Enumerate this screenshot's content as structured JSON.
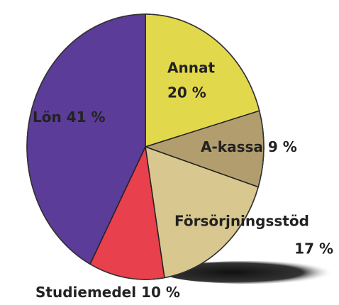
{
  "chart_data": {
    "type": "pie",
    "categories": [
      "Annat",
      "A-kassa",
      "Försörjningsstöd",
      "Studiemedel",
      "Lön"
    ],
    "values": [
      20,
      9,
      17,
      10,
      41
    ],
    "value_labels": [
      "20 %",
      "9 %",
      "17 %",
      "10 %",
      "41 %"
    ],
    "colors": [
      "#e2d84c",
      "#b19d6e",
      "#d8c78f",
      "#e8404c",
      "#5b3c98"
    ]
  }
}
